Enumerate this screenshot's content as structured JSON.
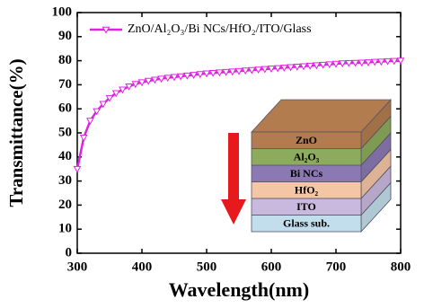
{
  "chart_data": {
    "type": "line",
    "xlabel": "Wavelength(nm)",
    "ylabel": "Transmittance(%)",
    "x": [
      300,
      310,
      320,
      330,
      340,
      350,
      360,
      370,
      380,
      390,
      400,
      410,
      420,
      430,
      440,
      450,
      460,
      470,
      480,
      490,
      500,
      510,
      520,
      530,
      540,
      550,
      560,
      570,
      580,
      590,
      600,
      610,
      620,
      630,
      640,
      650,
      660,
      670,
      680,
      690,
      700,
      710,
      720,
      730,
      740,
      750,
      760,
      770,
      780,
      790,
      800
    ],
    "series": [
      {
        "name": "ZnO/Al₂O₃/Bi NCs/HfO₂/ITO/Glass",
        "color": "#e021e0",
        "values": [
          35,
          48,
          55,
          59,
          62,
          64.5,
          66.5,
          68,
          69.3,
          70.3,
          71,
          71.6,
          72.1,
          72.5,
          72.9,
          73.2,
          73.5,
          73.8,
          74.1,
          74.4,
          74.7,
          74.9,
          75.1,
          75.3,
          75.5,
          75.7,
          75.9,
          76.1,
          76.3,
          76.5,
          76.7,
          76.9,
          77.1,
          77.3,
          77.5,
          77.7,
          77.9,
          78.1,
          78.3,
          78.5,
          78.7,
          78.9,
          79.0,
          79.1,
          79.2,
          79.3,
          79.5,
          79.6,
          79.8,
          79.9,
          80
        ]
      }
    ],
    "xlim": [
      300,
      800
    ],
    "xticks": [
      300,
      400,
      500,
      600,
      700,
      800
    ],
    "ylim": [
      0,
      100
    ],
    "yticks": [
      0,
      10,
      20,
      30,
      40,
      50,
      60,
      70,
      80,
      90,
      100
    ],
    "legend": "upper left",
    "inset": {
      "layers": [
        {
          "label": "ZnO",
          "color": "#b37c4e"
        },
        {
          "label": "Al₂O₃",
          "color": "#8cab5c"
        },
        {
          "label": "Bi NCs",
          "color": "#8b79b3"
        },
        {
          "label": "HfO₂",
          "color": "#f5c6a6"
        },
        {
          "label": "ITO",
          "color": "#cab9de"
        },
        {
          "label": "Glass sub.",
          "color": "#c2deec"
        }
      ]
    }
  }
}
